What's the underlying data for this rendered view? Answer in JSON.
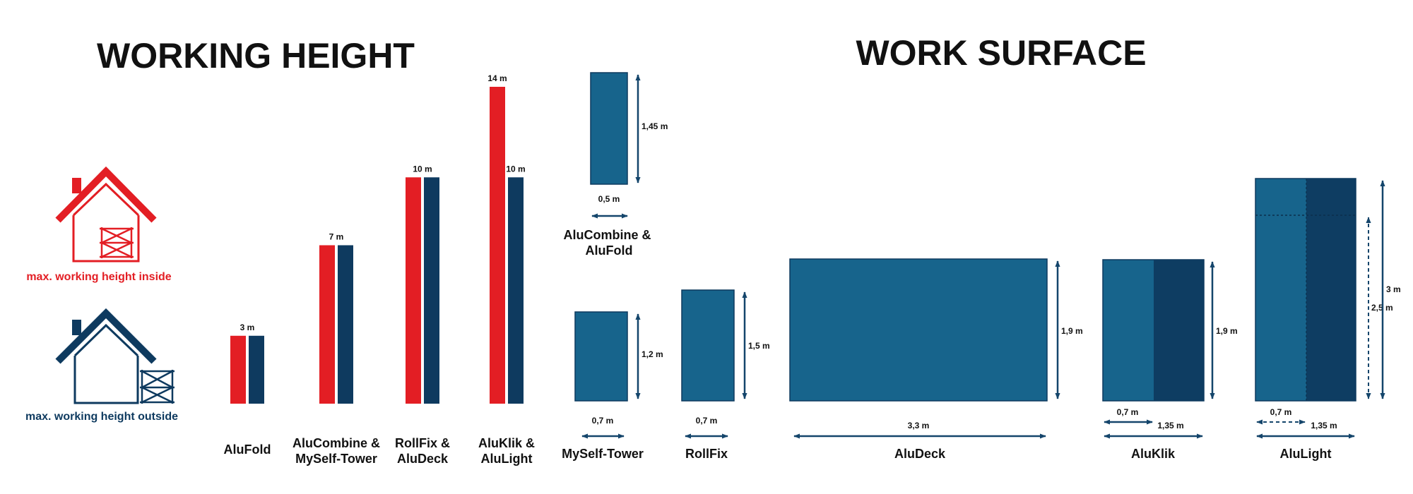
{
  "colors": {
    "red": "#e31e24",
    "navy": "#0e3a5f",
    "teal": "#17648c",
    "teal_dark": "#0e3d62",
    "arrow": "#14456b",
    "text": "#111111"
  },
  "working_height": {
    "title": "WORKING HEIGHT",
    "legend_inside": {
      "label": "max. working height inside",
      "icon": "house-inside-scaffold-icon"
    },
    "legend_outside": {
      "label": "max. working height outside",
      "icon": "house-outside-scaffold-icon"
    },
    "chart_data": {
      "type": "bar",
      "title": "WORKING HEIGHT",
      "unit": "m",
      "ylim": [
        0,
        14
      ],
      "categories": [
        "AluFold",
        "AluCombine &\nMySelf-Tower",
        "RollFix &\nAluDeck",
        "AluKlik &\nAluLight"
      ],
      "series": [
        {
          "name": "max. working height inside",
          "color": "#e31e24",
          "values": [
            3,
            7,
            10,
            14
          ]
        },
        {
          "name": "max. working height outside",
          "color": "#0e3a5f",
          "values": [
            3,
            7,
            10,
            10
          ]
        }
      ],
      "labels": [
        [
          "3 m"
        ],
        [
          "7 m"
        ],
        [
          "10 m"
        ],
        [
          "14 m",
          "10 m"
        ]
      ]
    }
  },
  "work_surface": {
    "title": "WORK SURFACE",
    "platforms": [
      {
        "name": "AluCombine &\nAluFold",
        "width_label": "0,5 m",
        "length_label": "1,45 m",
        "width": 0.5,
        "length": 1.45
      },
      {
        "name": "MySelf-Tower",
        "width_label": "0,7 m",
        "length_label": "1,2 m",
        "width": 0.7,
        "length": 1.2
      },
      {
        "name": "RollFix",
        "width_label": "0,7 m",
        "length_label": "1,5 m",
        "width": 0.7,
        "length": 1.5
      },
      {
        "name": "AluDeck",
        "width_label": "3,3 m",
        "length_label": "1,9 m",
        "width": 3.3,
        "length": 1.9
      },
      {
        "name": "AluKlik",
        "width_label": "0,7 m",
        "width_label_2": "1,35 m",
        "length_label": "1,9 m",
        "width": 0.7,
        "width_2": 1.35,
        "length": 1.9
      },
      {
        "name": "AluLight",
        "width_label": "0,7 m",
        "width_label_2": "1,35 m",
        "length_label": "3 m",
        "length_label_2": "2,5 m",
        "width": 0.7,
        "width_2": 1.35,
        "length": 3,
        "length_2": 2.5
      }
    ]
  }
}
